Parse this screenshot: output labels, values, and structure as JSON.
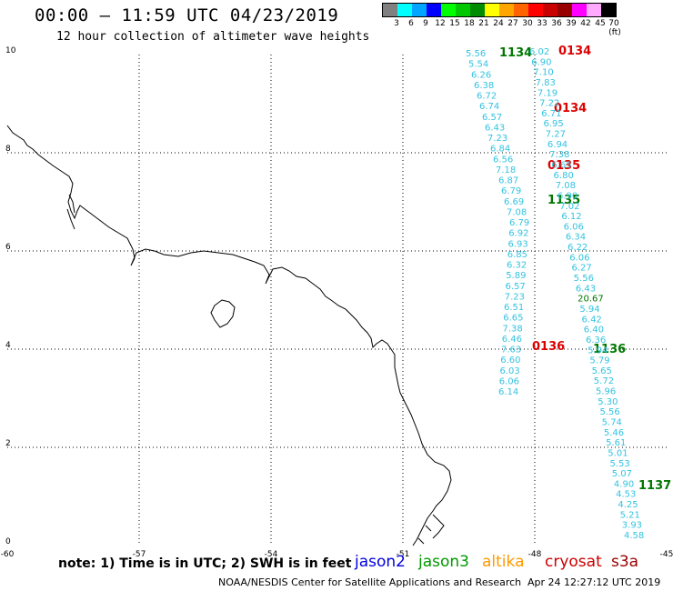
{
  "header": {
    "title": "00:00 – 11:59 UTC 04/23/2019",
    "subtitle": "12 hour collection of altimeter wave heights"
  },
  "legend": {
    "colors": [
      "#808080",
      "#00ffff",
      "#00a5ff",
      "#0000ff",
      "#00ff00",
      "#00c800",
      "#008c00",
      "#ffff00",
      "#ffa500",
      "#ff6400",
      "#ff0000",
      "#c80000",
      "#960000",
      "#ff00ff",
      "#ffaaff",
      "#000000"
    ],
    "labels": [
      "3",
      "6",
      "9",
      "12",
      "15",
      "18",
      "21",
      "24",
      "27",
      "30",
      "33",
      "36",
      "39",
      "42",
      "45",
      "70 (ft)"
    ]
  },
  "axes": {
    "x_ticks": [
      "-60",
      "-57",
      "-54",
      "-51",
      "-48",
      "-45"
    ],
    "y_ticks": [
      "0",
      "2",
      "4",
      "6",
      "8",
      "10"
    ]
  },
  "time_labels": [
    {
      "text": "0134",
      "color": "#dd0000"
    },
    {
      "text": "0134",
      "color": "#dd0000"
    },
    {
      "text": "0135",
      "color": "#dd0000"
    },
    {
      "text": "0136",
      "color": "#dd0000"
    },
    {
      "text": "1134",
      "color": "#007700"
    },
    {
      "text": "1135",
      "color": "#007700"
    },
    {
      "text": "1136",
      "color": "#007700"
    },
    {
      "text": "1137",
      "color": "#007700"
    }
  ],
  "tracks": {
    "left_pass": [
      "5.56",
      "5.54",
      "6.26",
      "6.38",
      "6.72",
      "6.74",
      "6.57",
      "6.43",
      "7.23",
      "6.84",
      "6.56",
      "7.18",
      "6.87",
      "6.79",
      "6.69",
      "7.08",
      "6.79",
      "6.92",
      "6.93",
      "6.85",
      "6.32",
      "5.89",
      "6.57",
      "7.23",
      "6.51",
      "6.65",
      "7.38",
      "6.46",
      "7.63",
      "6.60",
      "6.03",
      "6.06",
      "6.14"
    ],
    "right_pass": [
      "6.02",
      "6.90",
      "7.10",
      "7.83",
      "7.19",
      "7.22",
      "6.71",
      "6.95",
      "7.27",
      "6.94",
      "7.38",
      "6.65",
      "6.80",
      "7.08",
      "6.90",
      "7.02",
      "6.12",
      "6.06",
      "6.34",
      "6.22",
      "6.06",
      "6.27",
      "5.56",
      "6.43",
      "20.67",
      "5.94",
      "6.42",
      "6.40",
      "6.36",
      "5.94",
      "5.79",
      "5.65",
      "5.72",
      "5.96",
      "5.30",
      "5.56",
      "5.74",
      "5.46",
      "5.61",
      "5.01",
      "5.53",
      "5.07",
      "4.90",
      "4.53",
      "4.25",
      "5.21",
      "3.93",
      "4.58"
    ]
  },
  "footer": {
    "note": "note: 1) Time is in UTC; 2) SWH is in feet",
    "credit": "NOAA/NESDIS Center for Satellite Applications and Research",
    "timestamp": "Apr 24 12:27:12 UTC 2019"
  },
  "satellites": [
    {
      "name": "jason2",
      "color": "#0000dd"
    },
    {
      "name": "jason3",
      "color": "#009900"
    },
    {
      "name": "altika",
      "color": "#ff9900"
    },
    {
      "name": "cryosat",
      "color": "#cc0000"
    },
    {
      "name": "s3a",
      "color": "#990000"
    }
  ]
}
